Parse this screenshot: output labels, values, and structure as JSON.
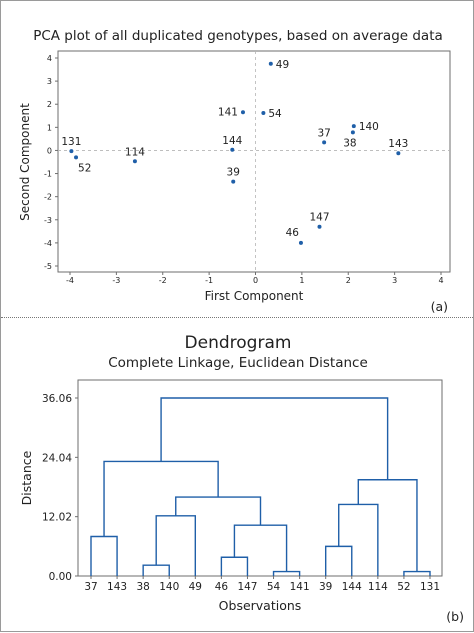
{
  "chart_data": [
    {
      "type": "scatter",
      "title": "PCA plot of all duplicated genotypes, based on average data",
      "xlabel": "First Component",
      "ylabel": "Second Component",
      "xlim": [
        -4,
        4
      ],
      "ylim": [
        -5,
        4
      ],
      "xticks": [
        "-4",
        "-3",
        "-2",
        "-1",
        "0",
        "1",
        "2",
        "3",
        "4"
      ],
      "yticks": [
        "4",
        "3",
        "2",
        "1",
        "0",
        "-1",
        "-2",
        "-3",
        "-4",
        "-5"
      ],
      "reference_lines": {
        "x": 0,
        "y": 0
      },
      "marker_color": "#1f5fa8",
      "points": [
        {
          "label": "49",
          "x": 0.33,
          "y": 3.75,
          "label_pos": "right"
        },
        {
          "label": "141",
          "x": -0.27,
          "y": 1.65,
          "label_pos": "left"
        },
        {
          "label": "54",
          "x": 0.17,
          "y": 1.62,
          "label_pos": "right"
        },
        {
          "label": "140",
          "x": 2.12,
          "y": 1.05,
          "label_pos": "right"
        },
        {
          "label": "38",
          "x": 2.1,
          "y": 0.78,
          "label_pos": "below-left"
        },
        {
          "label": "37",
          "x": 1.48,
          "y": 0.35,
          "label_pos": "above"
        },
        {
          "label": "143",
          "x": 3.08,
          "y": -0.12,
          "label_pos": "above"
        },
        {
          "label": "131",
          "x": -3.97,
          "y": -0.03,
          "label_pos": "above"
        },
        {
          "label": "52",
          "x": -3.87,
          "y": -0.3,
          "label_pos": "below-right"
        },
        {
          "label": "114",
          "x": -2.6,
          "y": -0.47,
          "label_pos": "above"
        },
        {
          "label": "144",
          "x": -0.5,
          "y": 0.03,
          "label_pos": "above"
        },
        {
          "label": "39",
          "x": -0.48,
          "y": -1.35,
          "label_pos": "above"
        },
        {
          "label": "147",
          "x": 1.38,
          "y": -3.3,
          "label_pos": "above"
        },
        {
          "label": "46",
          "x": 0.98,
          "y": -4.0,
          "label_pos": "above-left"
        }
      ],
      "panel_label": "(a)"
    },
    {
      "type": "dendrogram",
      "title": "Dendrogram",
      "subtitle": "Complete Linkage, Euclidean Distance",
      "xlabel": "Observations",
      "ylabel": "Distance",
      "ylim": [
        0,
        36.06
      ],
      "yticks": [
        "0.00",
        "12.02",
        "24.04",
        "36.06"
      ],
      "line_color": "#1f5fa8",
      "leaves": [
        "37",
        "143",
        "38",
        "140",
        "49",
        "46",
        "147",
        "54",
        "141",
        "39",
        "144",
        "114",
        "52",
        "131"
      ],
      "merges": [
        {
          "id": "m1",
          "left": "37",
          "right": "143",
          "height": 8.0
        },
        {
          "id": "m2",
          "left": "38",
          "right": "140",
          "height": 2.2
        },
        {
          "id": "m3",
          "left": "m2",
          "right": "49",
          "height": 12.2
        },
        {
          "id": "m4",
          "left": "46",
          "right": "147",
          "height": 3.8
        },
        {
          "id": "m5",
          "left": "54",
          "right": "141",
          "height": 0.9
        },
        {
          "id": "m6",
          "left": "m4",
          "right": "m5",
          "height": 10.3
        },
        {
          "id": "m7",
          "left": "m3",
          "right": "m6",
          "height": 16.0
        },
        {
          "id": "m8",
          "left": "m1",
          "right": "m7",
          "height": 23.2
        },
        {
          "id": "m9",
          "left": "39",
          "right": "144",
          "height": 6.0
        },
        {
          "id": "m10",
          "left": "m9",
          "right": "114",
          "height": 14.5
        },
        {
          "id": "m11",
          "left": "52",
          "right": "131",
          "height": 0.9
        },
        {
          "id": "m12",
          "left": "m10",
          "right": "m11",
          "height": 19.5
        },
        {
          "id": "m13",
          "left": "m8",
          "right": "m12",
          "height": 36.06
        }
      ],
      "panel_label": "(b)"
    }
  ]
}
